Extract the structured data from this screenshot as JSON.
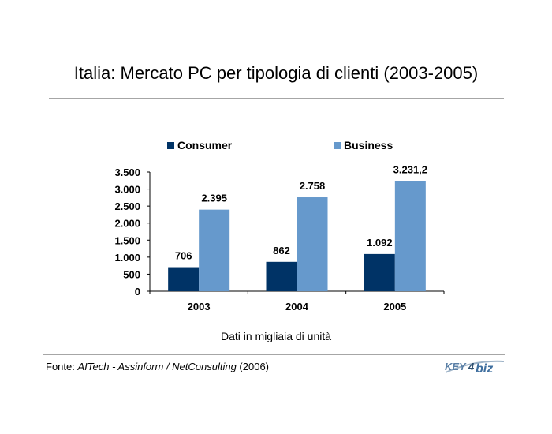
{
  "title": "Italia: Mercato PC per tipologia di clienti (2003-2005)",
  "note": "Dati in migliaia di unità",
  "source": {
    "prefix": "Fonte: ",
    "italic": "AITech - Assinform / NetConsulting",
    "suffix": " (2006)"
  },
  "logo": {
    "part1": "KEY",
    "part2": "4",
    "part3": "biz"
  },
  "colors": {
    "consumer": "#003366",
    "business": "#6699cc"
  },
  "chart_data": {
    "type": "bar",
    "categories": [
      "2003",
      "2004",
      "2005"
    ],
    "series": [
      {
        "name": "Consumer",
        "values": [
          706,
          862,
          1092
        ],
        "labels": [
          "706",
          "862",
          "1.092"
        ]
      },
      {
        "name": "Business",
        "values": [
          2395,
          2758,
          3231.2
        ],
        "labels": [
          "2.395",
          "2.758",
          "3.231,2"
        ]
      }
    ],
    "ylim": [
      0,
      3500
    ],
    "yticks": [
      0,
      500,
      1000,
      1500,
      2000,
      2500,
      3000,
      3500
    ],
    "ytick_labels": [
      "0",
      "500",
      "1.000",
      "1.500",
      "2.000",
      "2.500",
      "3.000",
      "3.500"
    ],
    "legend_position": "top",
    "grid": false
  }
}
